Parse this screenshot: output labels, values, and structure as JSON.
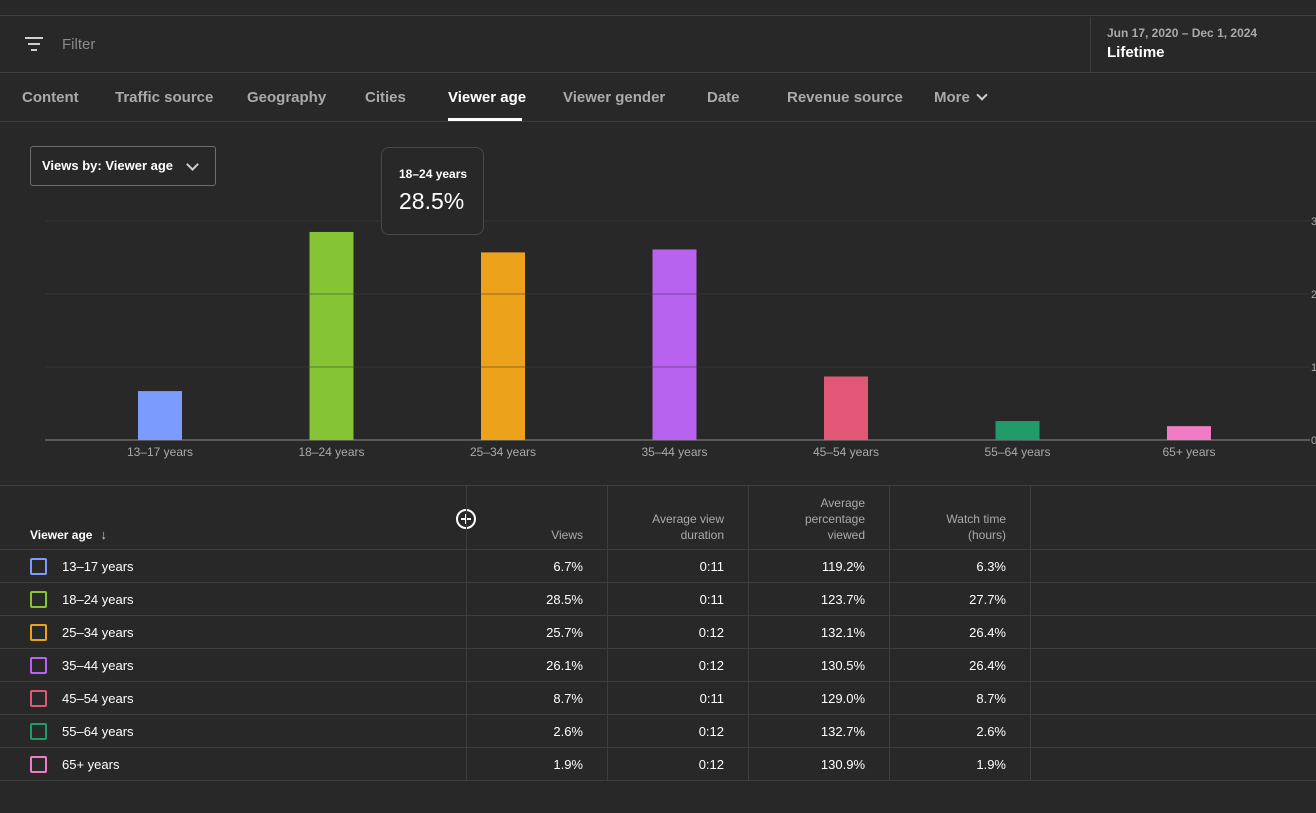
{
  "filter": {
    "placeholder": "Filter"
  },
  "date": {
    "range": "Jun 17, 2020 – Dec 1, 2024",
    "label": "Lifetime"
  },
  "tabs": [
    {
      "label": "Content",
      "active": false
    },
    {
      "label": "Traffic source",
      "active": false
    },
    {
      "label": "Geography",
      "active": false
    },
    {
      "label": "Cities",
      "active": false
    },
    {
      "label": "Viewer age",
      "active": true
    },
    {
      "label": "Viewer gender",
      "active": false
    },
    {
      "label": "Date",
      "active": false
    },
    {
      "label": "Revenue source",
      "active": false
    },
    {
      "label": "More",
      "active": false
    }
  ],
  "dropdown": {
    "label": "Views by: Viewer age"
  },
  "tooltip": {
    "label": "18–24 years",
    "value": "28.5%"
  },
  "chart_data": {
    "type": "bar",
    "categories": [
      "13–17 years",
      "18–24 years",
      "25–34 years",
      "35–44 years",
      "45–54 years",
      "55–64 years",
      "65+ years"
    ],
    "values": [
      6.7,
      28.5,
      25.7,
      26.1,
      8.7,
      2.6,
      1.9
    ],
    "colors": [
      "#7b9bff",
      "#84c435",
      "#eca21a",
      "#b862f0",
      "#e25775",
      "#219b6a",
      "#f07cc5"
    ],
    "ylim": [
      0,
      30
    ],
    "yticks": [
      "0",
      "1",
      "2",
      "3"
    ],
    "grid": true
  },
  "table": {
    "headers": {
      "first": "Viewer age",
      "views": "Views",
      "avg_duration": "Average view duration",
      "avg_pct": "Average percentage viewed",
      "watch_time": "Watch time (hours)"
    },
    "rows": [
      {
        "label": "13–17 years",
        "color": "#7b9bff",
        "views": "6.7%",
        "duration": "0:11",
        "pct": "119.2%",
        "watch": "6.3%"
      },
      {
        "label": "18–24 years",
        "color": "#84c435",
        "views": "28.5%",
        "duration": "0:11",
        "pct": "123.7%",
        "watch": "27.7%"
      },
      {
        "label": "25–34 years",
        "color": "#eca21a",
        "views": "25.7%",
        "duration": "0:12",
        "pct": "132.1%",
        "watch": "26.4%"
      },
      {
        "label": "35–44 years",
        "color": "#b862f0",
        "views": "26.1%",
        "duration": "0:12",
        "pct": "130.5%",
        "watch": "26.4%"
      },
      {
        "label": "45–54 years",
        "color": "#e25775",
        "views": "8.7%",
        "duration": "0:11",
        "pct": "129.0%",
        "watch": "8.7%"
      },
      {
        "label": "55–64 years",
        "color": "#219b6a",
        "views": "2.6%",
        "duration": "0:12",
        "pct": "132.7%",
        "watch": "2.6%"
      },
      {
        "label": "65+ years",
        "color": "#f07cc5",
        "views": "1.9%",
        "duration": "0:12",
        "pct": "130.9%",
        "watch": "1.9%"
      }
    ]
  }
}
